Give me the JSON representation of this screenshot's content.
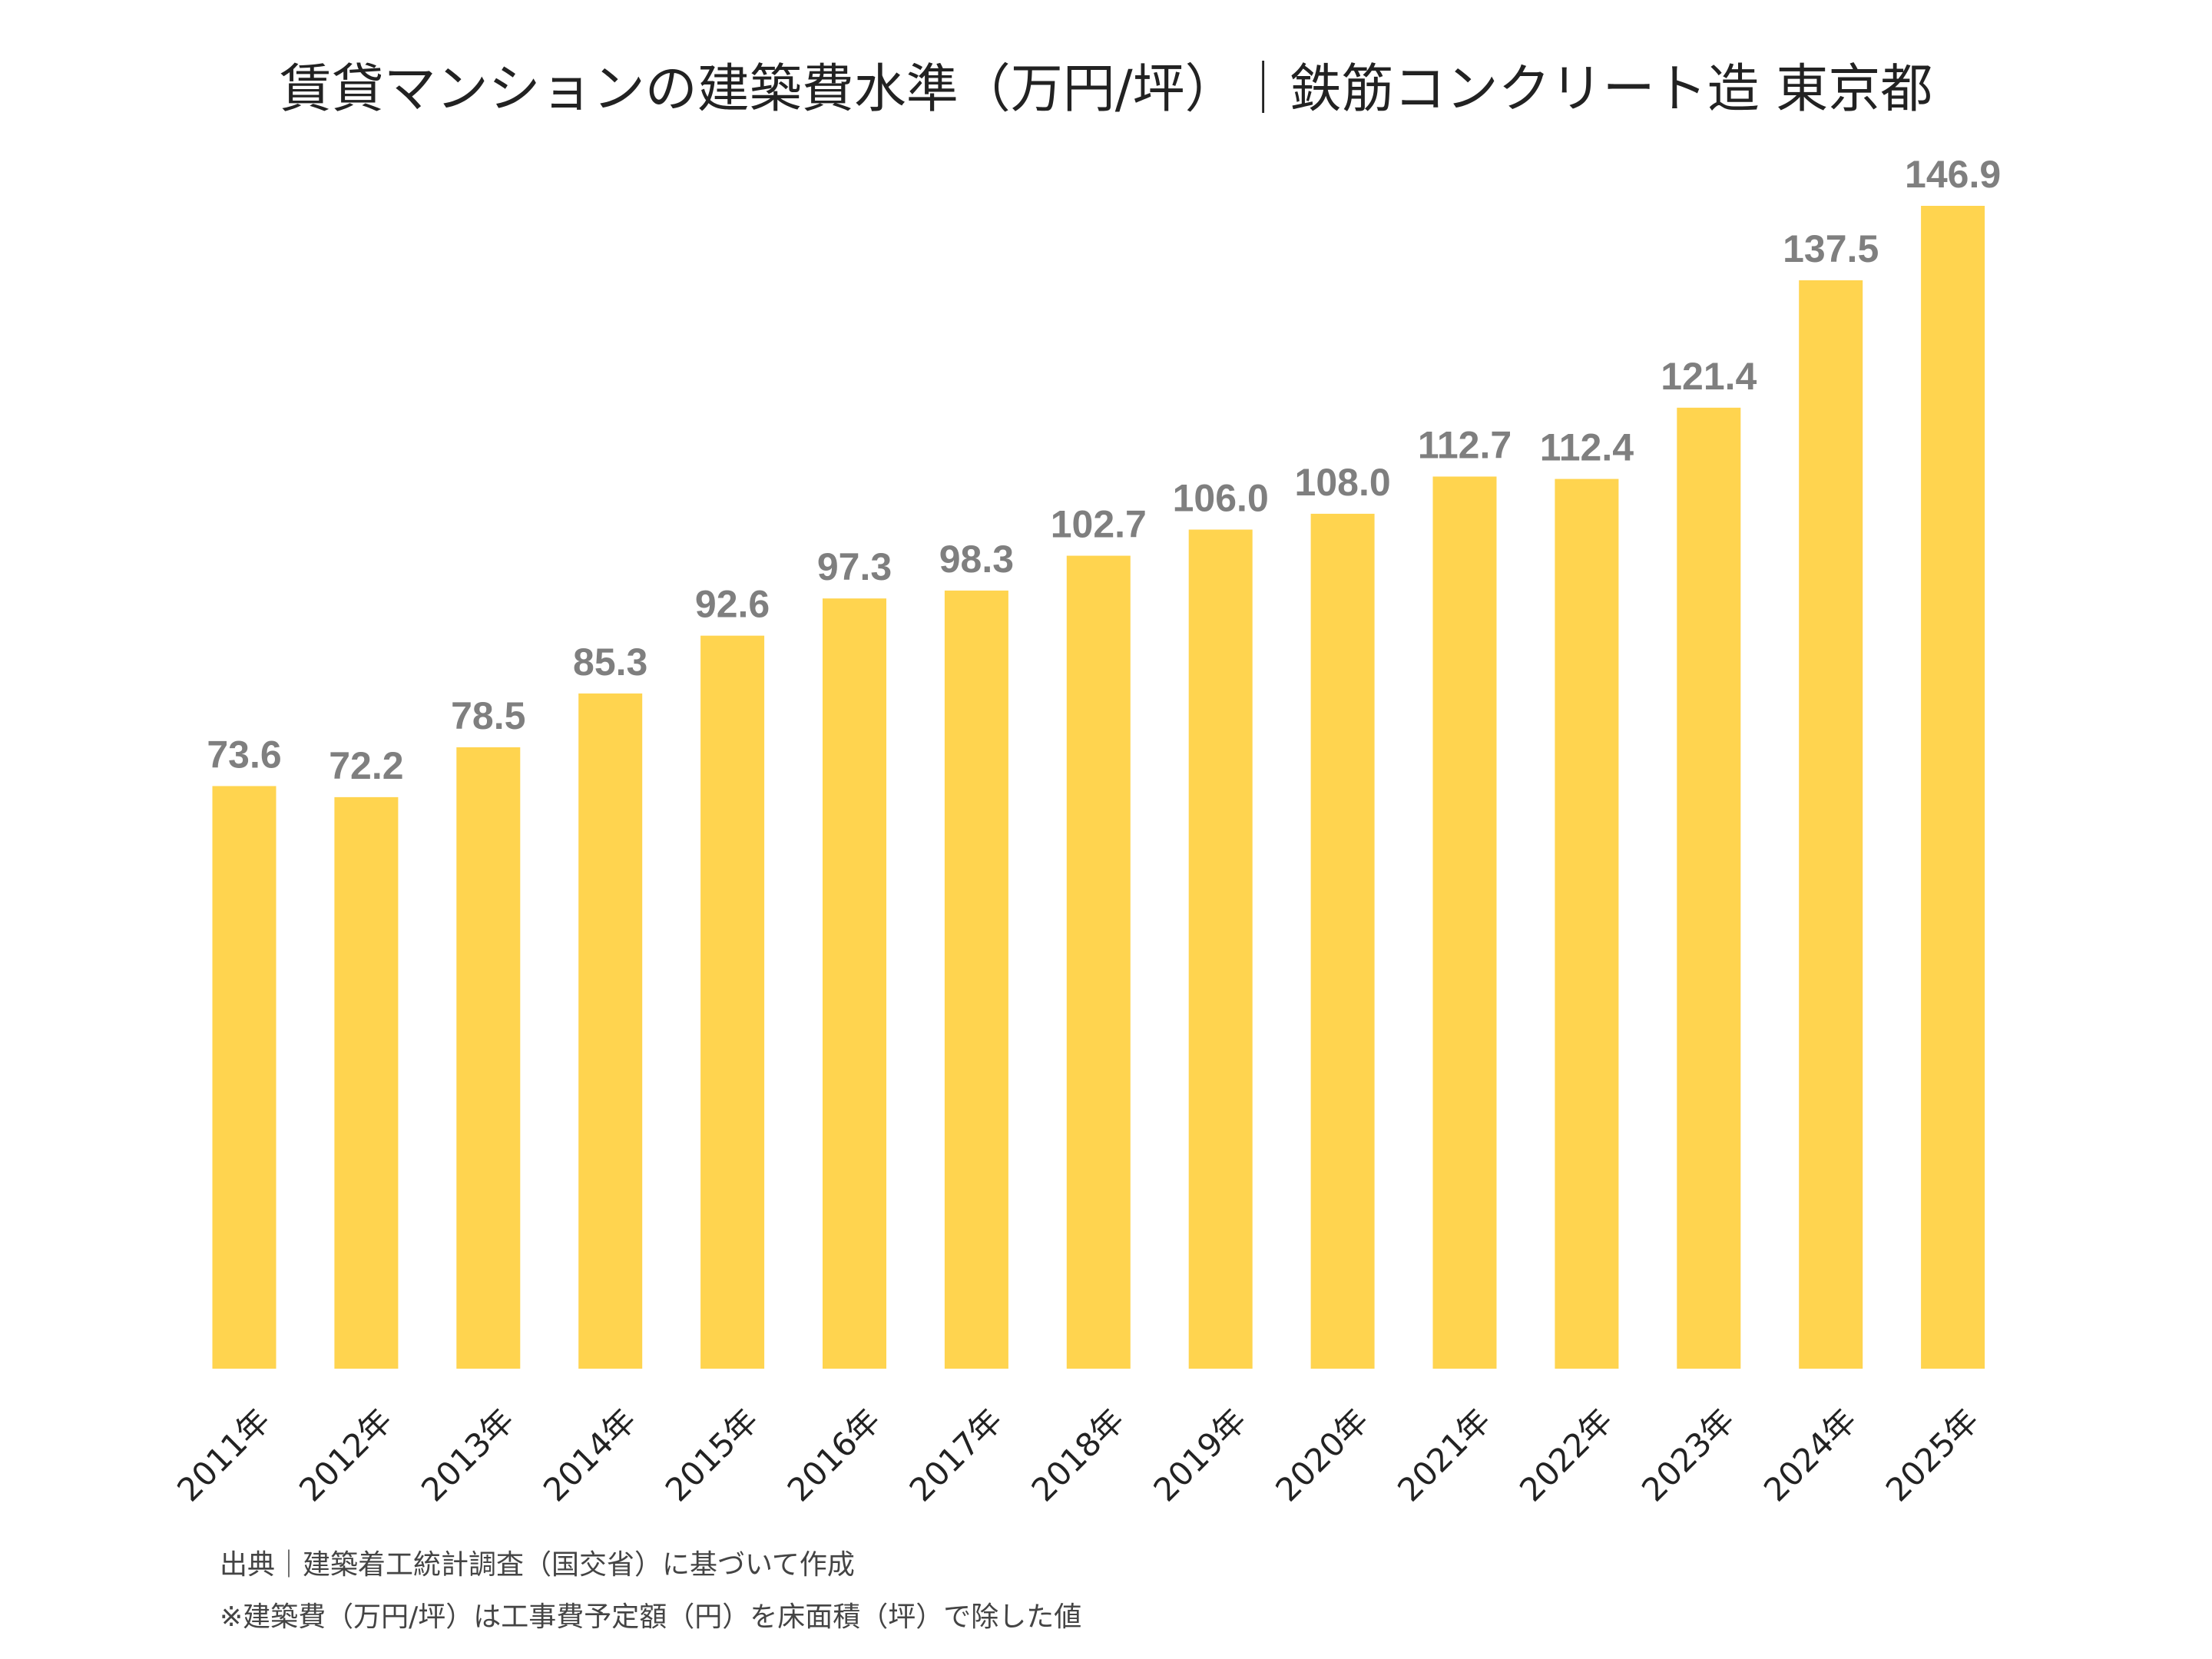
{
  "chart_data": {
    "type": "bar",
    "title": "賃貸マンションの建築費水準（万円/坪）｜鉄筋コンクリート造 東京都",
    "categories": [
      "2011年",
      "2012年",
      "2013年",
      "2014年",
      "2015年",
      "2016年",
      "2017年",
      "2018年",
      "2019年",
      "2020年",
      "2021年",
      "2022年",
      "2023年",
      "2024年",
      "2025年"
    ],
    "values": [
      73.6,
      72.2,
      78.5,
      85.3,
      92.6,
      97.3,
      98.3,
      102.7,
      106.0,
      108.0,
      112.7,
      112.4,
      121.4,
      137.5,
      146.9
    ],
    "value_labels": [
      "73.6",
      "72.2",
      "78.5",
      "85.3",
      "92.6",
      "97.3",
      "98.3",
      "102.7",
      "106.0",
      "108.0",
      "112.7",
      "112.4",
      "121.4",
      "137.5",
      "146.9"
    ],
    "xlabel": "",
    "ylabel": "",
    "ylim": [
      0,
      146.9
    ],
    "grid": false,
    "legend": "none",
    "colors": {
      "bar": "#FFD44F",
      "value_label": "#7F7F7F",
      "tick_label": "#222222"
    }
  },
  "notes": {
    "source": "出典｜建築着工統計調査（国交省）に基づいて作成",
    "definition": "※建築費（万円/坪）は工事費予定額（円）を床面積（坪）で除した値"
  }
}
